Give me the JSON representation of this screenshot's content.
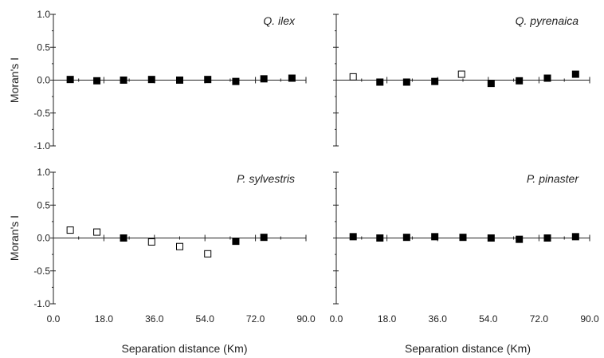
{
  "chart_data": [
    {
      "type": "scatter",
      "title": "Q. ilex",
      "xlabel": "",
      "ylabel": "Moran's I",
      "xlim": [
        0,
        90
      ],
      "ylim": [
        -1,
        1
      ],
      "x_ticks": [],
      "y_ticks": [
        "1.0",
        "0.5",
        "0.0",
        "-0.5",
        "-1.0"
      ],
      "grid": false,
      "points": [
        {
          "x": 6,
          "y": 0.01,
          "filled": true
        },
        {
          "x": 15.5,
          "y": -0.01,
          "filled": true
        },
        {
          "x": 25,
          "y": 0.0,
          "filled": true
        },
        {
          "x": 35,
          "y": 0.01,
          "filled": true
        },
        {
          "x": 45,
          "y": 0.0,
          "filled": true
        },
        {
          "x": 55,
          "y": 0.01,
          "filled": true
        },
        {
          "x": 65,
          "y": -0.02,
          "filled": true
        },
        {
          "x": 75,
          "y": 0.02,
          "filled": true
        },
        {
          "x": 85,
          "y": 0.03,
          "filled": true
        }
      ]
    },
    {
      "type": "scatter",
      "title": "Q. pyrenaica",
      "xlabel": "",
      "ylabel": "",
      "xlim": [
        0,
        90
      ],
      "ylim": [
        -1,
        1
      ],
      "x_ticks": [],
      "y_ticks": [],
      "grid": false,
      "points": [
        {
          "x": 6,
          "y": 0.05,
          "filled": false
        },
        {
          "x": 15.5,
          "y": -0.03,
          "filled": true
        },
        {
          "x": 25,
          "y": -0.03,
          "filled": true
        },
        {
          "x": 35,
          "y": -0.02,
          "filled": true
        },
        {
          "x": 44.5,
          "y": 0.09,
          "filled": false
        },
        {
          "x": 55,
          "y": -0.05,
          "filled": true
        },
        {
          "x": 65,
          "y": -0.01,
          "filled": true
        },
        {
          "x": 75,
          "y": 0.03,
          "filled": true
        },
        {
          "x": 85,
          "y": 0.09,
          "filled": true
        }
      ]
    },
    {
      "type": "scatter",
      "title": "P. sylvestris",
      "xlabel": "Separation distance (Km)",
      "ylabel": "Moran's I",
      "xlim": [
        0,
        90
      ],
      "ylim": [
        -1,
        1
      ],
      "x_ticks": [
        "0.0",
        "18.0",
        "36.0",
        "54.0",
        "72.0",
        "90.0"
      ],
      "y_ticks": [
        "1.0",
        "0.5",
        "0.0",
        "-0.5",
        "-1.0"
      ],
      "grid": false,
      "points": [
        {
          "x": 6,
          "y": 0.12,
          "filled": false
        },
        {
          "x": 15.5,
          "y": 0.09,
          "filled": false
        },
        {
          "x": 25,
          "y": 0.0,
          "filled": true
        },
        {
          "x": 35,
          "y": -0.06,
          "filled": false
        },
        {
          "x": 45,
          "y": -0.13,
          "filled": false
        },
        {
          "x": 55,
          "y": -0.24,
          "filled": false
        },
        {
          "x": 65,
          "y": -0.05,
          "filled": true
        },
        {
          "x": 75,
          "y": 0.01,
          "filled": true
        }
      ]
    },
    {
      "type": "scatter",
      "title": "P. pinaster",
      "xlabel": "Separation distance (Km)",
      "ylabel": "",
      "xlim": [
        0,
        90
      ],
      "ylim": [
        -1,
        1
      ],
      "x_ticks": [
        "0.0",
        "18.0",
        "36.0",
        "54.0",
        "72.0",
        "90.0"
      ],
      "y_ticks": [],
      "grid": false,
      "points": [
        {
          "x": 6,
          "y": 0.02,
          "filled": true
        },
        {
          "x": 15.5,
          "y": 0.0,
          "filled": true
        },
        {
          "x": 25,
          "y": 0.01,
          "filled": true
        },
        {
          "x": 35,
          "y": 0.02,
          "filled": true
        },
        {
          "x": 45,
          "y": 0.01,
          "filled": true
        },
        {
          "x": 55,
          "y": 0.0,
          "filled": true
        },
        {
          "x": 65,
          "y": -0.02,
          "filled": true
        },
        {
          "x": 75,
          "y": 0.0,
          "filled": true
        },
        {
          "x": 85,
          "y": 0.02,
          "filled": true
        }
      ]
    }
  ]
}
